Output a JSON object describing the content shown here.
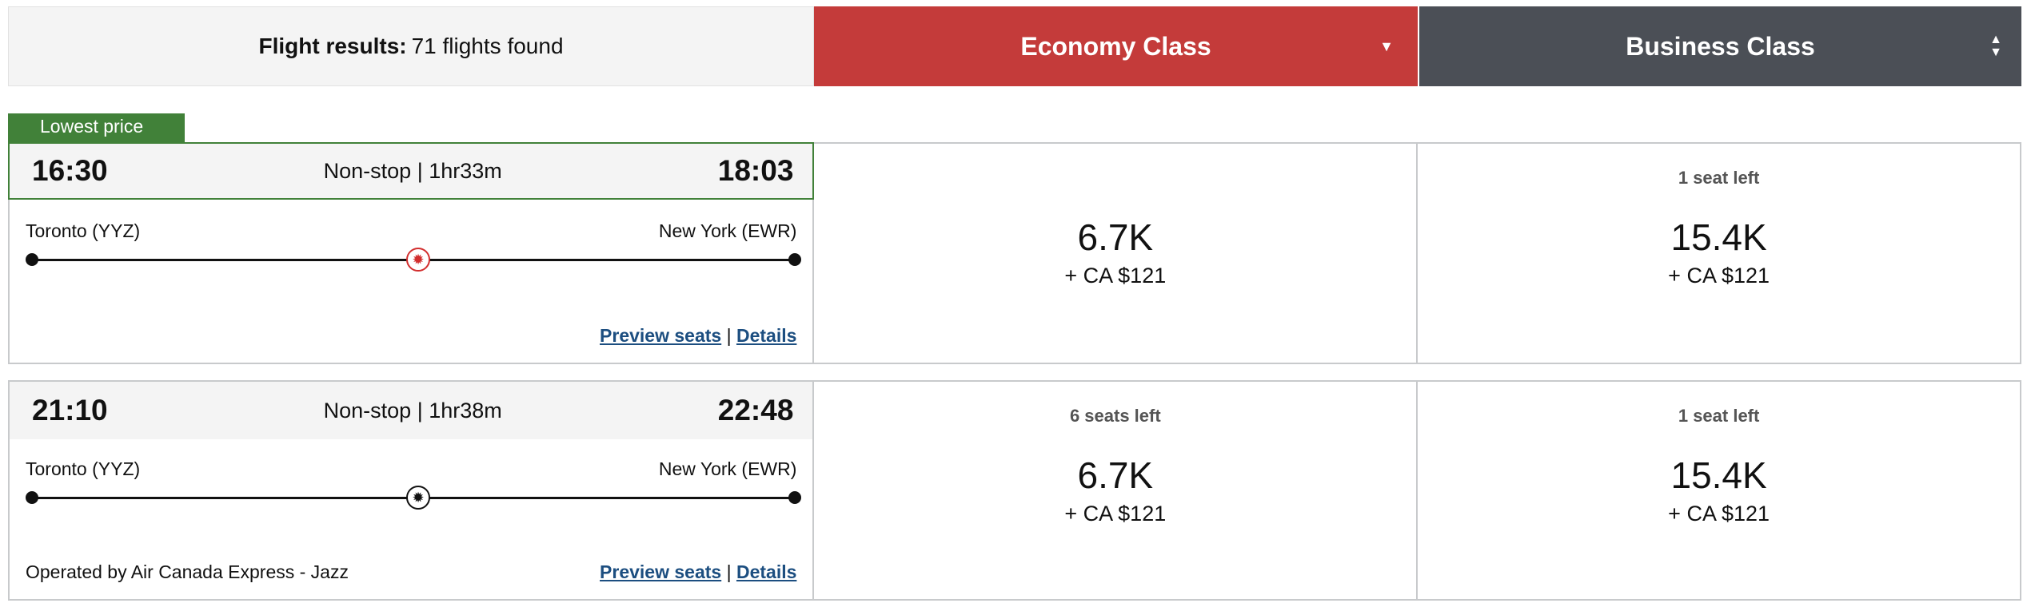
{
  "header": {
    "results_label": "Flight results:",
    "results_count": "71 flights found",
    "economy_label": "Economy Class",
    "business_label": "Business Class",
    "colors": {
      "economy": "#c43b3a",
      "business": "#4b4f56",
      "lowest_tag": "#418139"
    }
  },
  "flights": [
    {
      "badge": "Lowest price",
      "depart": "16:30",
      "arrive": "18:03",
      "summary": "Non-stop | 1hr33m",
      "origin": "Toronto (YYZ)",
      "destination": "New York (EWR)",
      "airline_icon": "maple-leaf-red",
      "operator": "",
      "preview": "Preview seats",
      "sep": "|",
      "details": "Details",
      "economy": {
        "seats": "",
        "price": "6.7K",
        "tax": "+ CA $121"
      },
      "business": {
        "seats": "1 seat left",
        "price": "15.4K",
        "tax": "+ CA $121"
      }
    },
    {
      "depart": "21:10",
      "arrive": "22:48",
      "summary": "Non-stop | 1hr38m",
      "origin": "Toronto (YYZ)",
      "destination": "New York (EWR)",
      "airline_icon": "maple-leaf-black",
      "operator": "Operated by Air Canada Express - Jazz",
      "preview": "Preview seats",
      "sep": "|",
      "details": "Details",
      "economy": {
        "seats": "6 seats left",
        "price": "6.7K",
        "tax": "+ CA $121"
      },
      "business": {
        "seats": "1 seat left",
        "price": "15.4K",
        "tax": "+ CA $121"
      }
    }
  ]
}
